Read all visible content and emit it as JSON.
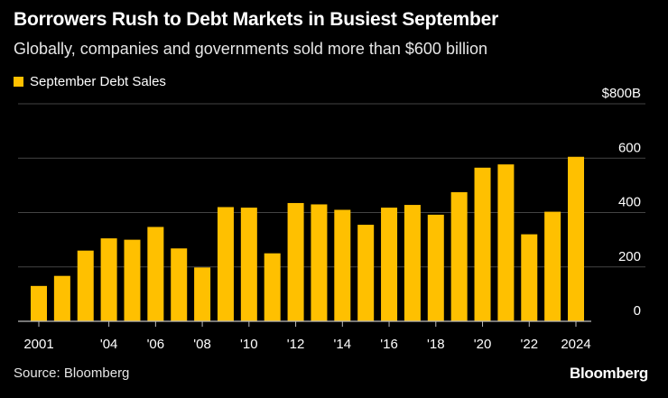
{
  "colors": {
    "background": "#000000",
    "bar": "#FFC000",
    "gridline": "#444444",
    "baseline": "#bbbbbb",
    "text": "#ffffff"
  },
  "source": "Source: Bloomberg",
  "brand": "Bloomberg",
  "chart_data": {
    "type": "bar",
    "title": "Borrowers Rush to Debt Markets in Busiest September",
    "subtitle": "Globally, companies and governments sold more than $600 billion",
    "legend": "top-left",
    "grid": true,
    "x": [
      2001,
      2002,
      2003,
      2004,
      2005,
      2006,
      2007,
      2008,
      2009,
      2010,
      2011,
      2012,
      2013,
      2014,
      2015,
      2016,
      2017,
      2018,
      2019,
      2020,
      2021,
      2022,
      2023,
      2024
    ],
    "series": [
      {
        "name": "September Debt Sales",
        "values": [
          130,
          167,
          260,
          305,
          300,
          347,
          268,
          198,
          420,
          418,
          250,
          435,
          430,
          410,
          355,
          418,
          428,
          392,
          475,
          565,
          577,
          320,
          403,
          605
        ]
      }
    ],
    "ylim": [
      0,
      800
    ],
    "y_ticks": [
      {
        "value": 0,
        "label": "0"
      },
      {
        "value": 200,
        "label": "200"
      },
      {
        "value": 400,
        "label": "400"
      },
      {
        "value": 600,
        "label": "600"
      },
      {
        "value": 800,
        "label": "$800B"
      }
    ],
    "x_ticks": [
      {
        "value": 2001,
        "label": "2001"
      },
      {
        "value": 2004,
        "label": "'04"
      },
      {
        "value": 2006,
        "label": "'06"
      },
      {
        "value": 2008,
        "label": "'08"
      },
      {
        "value": 2010,
        "label": "'10"
      },
      {
        "value": 2012,
        "label": "'12"
      },
      {
        "value": 2014,
        "label": "'14"
      },
      {
        "value": 2016,
        "label": "'16"
      },
      {
        "value": 2018,
        "label": "'18"
      },
      {
        "value": 2020,
        "label": "'20"
      },
      {
        "value": 2022,
        "label": "'22"
      },
      {
        "value": 2024,
        "label": "2024"
      }
    ]
  }
}
